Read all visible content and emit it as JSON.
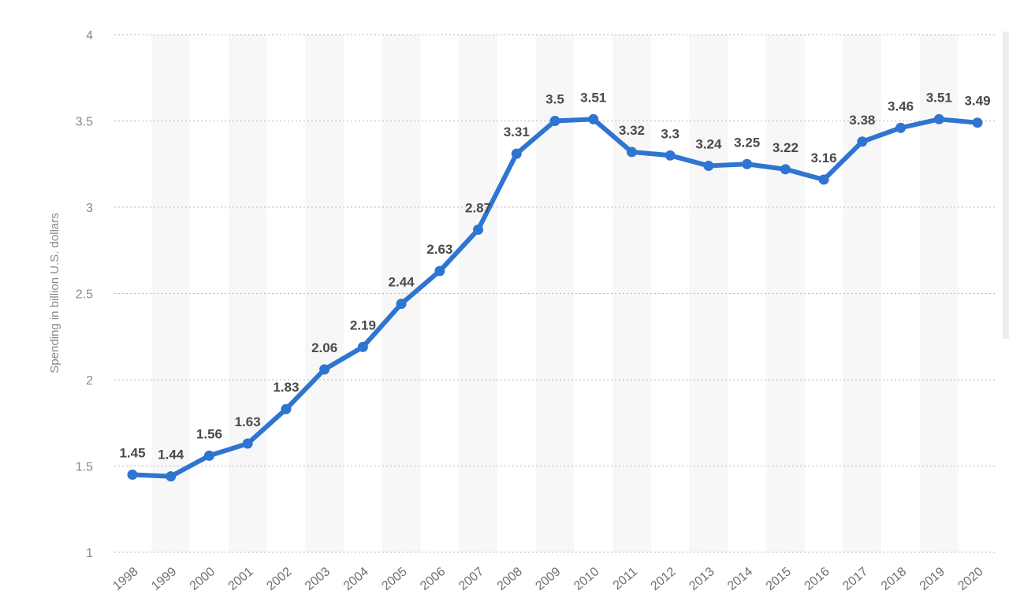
{
  "chart_data": {
    "type": "line",
    "ylabel": "Spending in billion U.S. dollars",
    "ylim": [
      1,
      4
    ],
    "yticks": [
      "1",
      "1.5",
      "2",
      "2.5",
      "3",
      "3.5",
      "4"
    ],
    "grid": true,
    "categories": [
      "1998",
      "1999",
      "2000",
      "2001",
      "2002",
      "2003",
      "2004",
      "2005",
      "2006",
      "2007",
      "2008",
      "2009",
      "2010",
      "2011",
      "2012",
      "2013",
      "2014",
      "2015",
      "2016",
      "2017",
      "2018",
      "2019",
      "2020"
    ],
    "values": [
      1.45,
      1.44,
      1.56,
      1.63,
      1.83,
      2.06,
      2.19,
      2.44,
      2.63,
      2.87,
      3.31,
      3.5,
      3.51,
      3.32,
      3.3,
      3.24,
      3.25,
      3.22,
      3.16,
      3.38,
      3.46,
      3.51,
      3.49
    ],
    "data_labels": [
      "1.45",
      "1.44",
      "1.56",
      "1.63",
      "1.83",
      "2.06",
      "2.19",
      "2.44",
      "2.63",
      "2.87",
      "3.31",
      "3.5",
      "3.51",
      "3.32",
      "3.3",
      "3.24",
      "3.25",
      "3.22",
      "3.16",
      "3.38",
      "3.46",
      "3.51",
      "3.49"
    ],
    "colors": {
      "line": "#2f74d0"
    }
  }
}
